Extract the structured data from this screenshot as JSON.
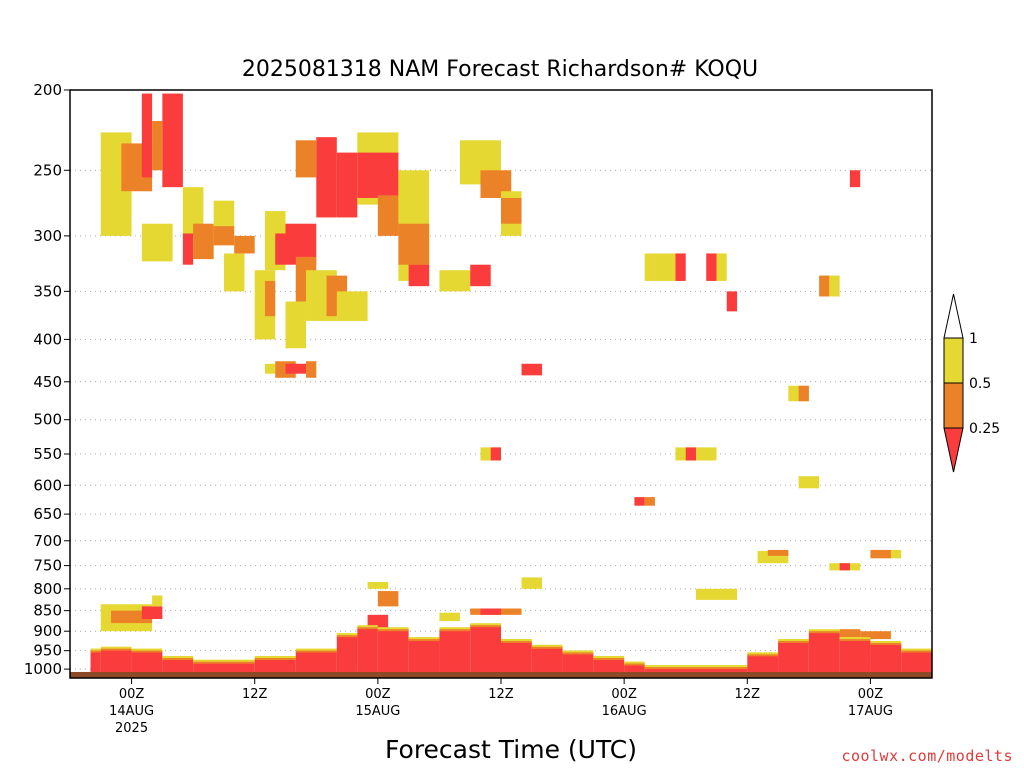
{
  "chart_data": {
    "type": "heatmap",
    "title": "2025081318 NAM Forecast Richardson# KOQU",
    "xlabel": "Forecast Time (UTC)",
    "ylabel": "",
    "y_scale": "log-pressure",
    "y_axis_reversed": true,
    "ylim": [
      1025,
      200
    ],
    "xlim": [
      "2025-08-13T18Z",
      "2025-08-17T06Z"
    ],
    "grid": "dotted horizontal at labeled pressure levels",
    "y_ticks": [
      "200",
      "250",
      "300",
      "350",
      "400",
      "450",
      "500",
      "550",
      "600",
      "650",
      "700",
      "750",
      "800",
      "850",
      "900",
      "950",
      "1000"
    ],
    "x_ticks": [
      {
        "t": "2025-08-14T00Z",
        "lines": [
          "00Z",
          "14AUG",
          "2025"
        ]
      },
      {
        "t": "2025-08-14T12Z",
        "lines": [
          "12Z"
        ]
      },
      {
        "t": "2025-08-15T00Z",
        "lines": [
          "00Z",
          "15AUG"
        ]
      },
      {
        "t": "2025-08-15T12Z",
        "lines": [
          "12Z"
        ]
      },
      {
        "t": "2025-08-16T00Z",
        "lines": [
          "00Z",
          "16AUG"
        ]
      },
      {
        "t": "2025-08-16T12Z",
        "lines": [
          "12Z"
        ]
      },
      {
        "t": "2025-08-17T00Z",
        "lines": [
          "00Z",
          "17AUG"
        ]
      }
    ],
    "legend": {
      "placement": "right",
      "colorbar": [
        {
          "label": "1",
          "color": "#ffffff"
        },
        {
          "label": "0.5",
          "color": "#e6d832"
        },
        {
          "label": "0.25",
          "color": "#ec8228"
        },
        {
          "label": "",
          "color": "#fa3c3c"
        }
      ]
    },
    "classes": {
      "y": {
        "range": "0.5–1",
        "color": "#e6d832"
      },
      "o": {
        "range": "0.25–0.5",
        "color": "#ec8228"
      },
      "r": {
        "range": "<0.25",
        "color": "#fa3c3c"
      }
    },
    "surface": {
      "color": "#8c4a26",
      "pressure_top": 1008
    },
    "regions": [
      {
        "c": "y",
        "t0": "08-13T21Z",
        "t1": "08-14T00Z",
        "p0": 225,
        "p1": 300
      },
      {
        "c": "o",
        "t0": "08-13T23Z",
        "t1": "08-14T02Z",
        "p0": 232,
        "p1": 265
      },
      {
        "c": "r",
        "t0": "08-14T01Z",
        "t1": "08-14T02Z",
        "p0": 202,
        "p1": 255
      },
      {
        "c": "y",
        "t0": "08-14T01Z",
        "t1": "08-14T04Z",
        "p0": 290,
        "p1": 322
      },
      {
        "c": "r",
        "t0": "08-14T03Z",
        "t1": "08-14T05Z",
        "p0": 202,
        "p1": 262
      },
      {
        "c": "o",
        "t0": "08-14T02Z",
        "t1": "08-14T03Z",
        "p0": 218,
        "p1": 250
      },
      {
        "c": "y",
        "t0": "08-14T05Z",
        "t1": "08-14T07Z",
        "p0": 262,
        "p1": 300
      },
      {
        "c": "r",
        "t0": "08-14T05Z",
        "t1": "08-14T06Z",
        "p0": 298,
        "p1": 325
      },
      {
        "c": "o",
        "t0": "08-14T06Z",
        "t1": "08-14T08Z",
        "p0": 290,
        "p1": 320
      },
      {
        "c": "y",
        "t0": "08-14T08Z",
        "t1": "08-14T10Z",
        "p0": 272,
        "p1": 305
      },
      {
        "c": "o",
        "t0": "08-14T08Z",
        "t1": "08-14T10Z",
        "p0": 292,
        "p1": 308
      },
      {
        "c": "y",
        "t0": "08-14T09Z",
        "t1": "08-14T11Z",
        "p0": 315,
        "p1": 350
      },
      {
        "c": "o",
        "t0": "08-14T10Z",
        "t1": "08-14T12Z",
        "p0": 300,
        "p1": 315
      },
      {
        "c": "y",
        "t0": "08-14T12Z",
        "t1": "08-14T14Z",
        "p0": 330,
        "p1": 400
      },
      {
        "c": "y",
        "t0": "08-14T13Z",
        "t1": "08-14T15Z",
        "p0": 280,
        "p1": 330
      },
      {
        "c": "o",
        "t0": "08-14T13Z",
        "t1": "08-14T14Z",
        "p0": 340,
        "p1": 375
      },
      {
        "c": "r",
        "t0": "08-14T14Z",
        "t1": "08-14T15Z",
        "p0": 298,
        "p1": 325
      },
      {
        "c": "r",
        "t0": "08-14T15Z",
        "t1": "08-14T18Z",
        "p0": 290,
        "p1": 325
      },
      {
        "c": "o",
        "t0": "08-14T16Z",
        "t1": "08-14T18Z",
        "p0": 318,
        "p1": 360
      },
      {
        "c": "y",
        "t0": "08-14T15Z",
        "t1": "08-14T17Z",
        "p0": 360,
        "p1": 410
      },
      {
        "c": "y",
        "t0": "08-14T17Z",
        "t1": "08-14T20Z",
        "p0": 330,
        "p1": 380
      },
      {
        "c": "o",
        "t0": "08-14T16Z",
        "t1": "08-14T18Z",
        "p0": 230,
        "p1": 255
      },
      {
        "c": "r",
        "t0": "08-14T18Z",
        "t1": "08-14T20Z",
        "p0": 228,
        "p1": 285
      },
      {
        "c": "r",
        "t0": "08-14T20Z",
        "t1": "08-14T22Z",
        "p0": 238,
        "p1": 285
      },
      {
        "c": "o",
        "t0": "08-14T19Z",
        "t1": "08-14T21Z",
        "p0": 335,
        "p1": 375
      },
      {
        "c": "y",
        "t0": "08-14T20Z",
        "t1": "08-14T23Z",
        "p0": 350,
        "p1": 380
      },
      {
        "c": "y",
        "t0": "08-14T22Z",
        "t1": "08-15T02Z",
        "p0": 225,
        "p1": 275
      },
      {
        "c": "r",
        "t0": "08-14T22Z",
        "t1": "08-15T02Z",
        "p0": 238,
        "p1": 270
      },
      {
        "c": "o",
        "t0": "08-15T00Z",
        "t1": "08-15T03Z",
        "p0": 268,
        "p1": 300
      },
      {
        "c": "y",
        "t0": "08-15T02Z",
        "t1": "08-15T05Z",
        "p0": 250,
        "p1": 340
      },
      {
        "c": "o",
        "t0": "08-15T02Z",
        "t1": "08-15T05Z",
        "p0": 290,
        "p1": 325
      },
      {
        "c": "r",
        "t0": "08-15T03Z",
        "t1": "08-15T05Z",
        "p0": 325,
        "p1": 345
      },
      {
        "c": "y",
        "t0": "08-15T06Z",
        "t1": "08-15T09Z",
        "p0": 330,
        "p1": 350
      },
      {
        "c": "r",
        "t0": "08-15T09Z",
        "t1": "08-15T11Z",
        "p0": 325,
        "p1": 345
      },
      {
        "c": "y",
        "t0": "08-15T08Z",
        "t1": "08-15T12Z",
        "p0": 230,
        "p1": 260
      },
      {
        "c": "o",
        "t0": "08-15T10Z",
        "t1": "08-15T13Z",
        "p0": 250,
        "p1": 270
      },
      {
        "c": "y",
        "t0": "08-15T12Z",
        "t1": "08-15T14Z",
        "p0": 265,
        "p1": 300
      },
      {
        "c": "o",
        "t0": "08-15T12Z",
        "t1": "08-15T14Z",
        "p0": 270,
        "p1": 290
      },
      {
        "c": "y",
        "t0": "08-14T13Z",
        "t1": "08-14T14Z",
        "p0": 428,
        "p1": 440
      },
      {
        "c": "o",
        "t0": "08-14T14Z",
        "t1": "08-14T16Z",
        "p0": 425,
        "p1": 445
      },
      {
        "c": "r",
        "t0": "08-14T15Z",
        "t1": "08-14T17Z",
        "p0": 428,
        "p1": 440
      },
      {
        "c": "o",
        "t0": "08-14T17Z",
        "t1": "08-14T18Z",
        "p0": 425,
        "p1": 445
      },
      {
        "c": "r",
        "t0": "08-15T14Z",
        "t1": "08-15T16Z",
        "p0": 428,
        "p1": 442
      },
      {
        "c": "y",
        "t0": "08-15T10Z",
        "t1": "08-15T12Z",
        "p0": 540,
        "p1": 560
      },
      {
        "c": "r",
        "t0": "08-15T11Z",
        "t1": "08-15T12Z",
        "p0": 540,
        "p1": 560
      },
      {
        "c": "y",
        "t0": "08-16T02Z",
        "t1": "08-16T03Z",
        "p0": 315,
        "p1": 340
      },
      {
        "c": "y",
        "t0": "08-16T03Z",
        "t1": "08-16T05Z",
        "p0": 315,
        "p1": 340
      },
      {
        "c": "r",
        "t0": "08-16T05Z",
        "t1": "08-16T06Z",
        "p0": 315,
        "p1": 340
      },
      {
        "c": "r",
        "t0": "08-16T08Z",
        "t1": "08-16T09Z",
        "p0": 315,
        "p1": 340
      },
      {
        "c": "y",
        "t0": "08-16T09Z",
        "t1": "08-16T10Z",
        "p0": 315,
        "p1": 340
      },
      {
        "c": "r",
        "t0": "08-16T10Z",
        "t1": "08-16T11Z",
        "p0": 350,
        "p1": 370
      },
      {
        "c": "y",
        "t0": "08-16T05Z",
        "t1": "08-16T09Z",
        "p0": 540,
        "p1": 560
      },
      {
        "c": "r",
        "t0": "08-16T06Z",
        "t1": "08-16T07Z",
        "p0": 540,
        "p1": 560
      },
      {
        "c": "r",
        "t0": "08-16T01Z",
        "t1": "08-16T02Z",
        "p0": 620,
        "p1": 635
      },
      {
        "c": "o",
        "t0": "08-16T02Z",
        "t1": "08-16T03Z",
        "p0": 620,
        "p1": 635
      },
      {
        "c": "y",
        "t0": "08-16T17Z",
        "t1": "08-16T19Z",
        "p0": 585,
        "p1": 605
      },
      {
        "c": "y",
        "t0": "08-16T16Z",
        "t1": "08-16T18Z",
        "p0": 455,
        "p1": 475
      },
      {
        "c": "o",
        "t0": "08-16T17Z",
        "t1": "08-16T18Z",
        "p0": 455,
        "p1": 475
      },
      {
        "c": "o",
        "t0": "08-16T19Z",
        "t1": "08-16T20Z",
        "p0": 335,
        "p1": 355
      },
      {
        "c": "y",
        "t0": "08-16T20Z",
        "t1": "08-16T21Z",
        "p0": 335,
        "p1": 355
      },
      {
        "c": "r",
        "t0": "08-16T22Z",
        "t1": "08-16T23Z",
        "p0": 250,
        "p1": 262
      },
      {
        "c": "y",
        "t0": "08-16T13Z",
        "t1": "08-16T16Z",
        "p0": 720,
        "p1": 745
      },
      {
        "c": "o",
        "t0": "08-16T14Z",
        "t1": "08-16T16Z",
        "p0": 718,
        "p1": 730
      },
      {
        "c": "y",
        "t0": "08-16T20Z",
        "t1": "08-16T23Z",
        "p0": 745,
        "p1": 760
      },
      {
        "c": "r",
        "t0": "08-16T21Z",
        "t1": "08-16T22Z",
        "p0": 745,
        "p1": 760
      },
      {
        "c": "o",
        "t0": "08-17T00Z",
        "t1": "08-17T02Z",
        "p0": 718,
        "p1": 735
      },
      {
        "c": "y",
        "t0": "08-17T02Z",
        "t1": "08-17T03Z",
        "p0": 718,
        "p1": 735
      },
      {
        "c": "y",
        "t0": "08-13T21Z",
        "t1": "08-14T02Z",
        "p0": 835,
        "p1": 900
      },
      {
        "c": "o",
        "t0": "08-13T22Z",
        "t1": "08-14T02Z",
        "p0": 850,
        "p1": 880
      },
      {
        "c": "r",
        "t0": "08-14T01Z",
        "t1": "08-14T03Z",
        "p0": 840,
        "p1": 870
      },
      {
        "c": "y",
        "t0": "08-14T02Z",
        "t1": "08-14T03Z",
        "p0": 815,
        "p1": 840
      },
      {
        "c": "y",
        "t0": "08-14T23Z",
        "t1": "08-15T01Z",
        "p0": 785,
        "p1": 800
      },
      {
        "c": "o",
        "t0": "08-15T00Z",
        "t1": "08-15T02Z",
        "p0": 805,
        "p1": 840
      },
      {
        "c": "r",
        "t0": "08-14T23Z",
        "t1": "08-15T01Z",
        "p0": 860,
        "p1": 900
      },
      {
        "c": "y",
        "t0": "08-15T06Z",
        "t1": "08-15T08Z",
        "p0": 855,
        "p1": 875
      },
      {
        "c": "o",
        "t0": "08-15T09Z",
        "t1": "08-15T14Z",
        "p0": 845,
        "p1": 860
      },
      {
        "c": "r",
        "t0": "08-15T10Z",
        "t1": "08-15T12Z",
        "p0": 845,
        "p1": 860
      },
      {
        "c": "y",
        "t0": "08-15T14Z",
        "t1": "08-15T16Z",
        "p0": 775,
        "p1": 800
      },
      {
        "c": "y",
        "t0": "08-16T07Z",
        "t1": "08-16T11Z",
        "p0": 800,
        "p1": 825
      },
      {
        "c": "o",
        "t0": "08-16T21Z",
        "t1": "08-16T23Z",
        "p0": 895,
        "p1": 915
      },
      {
        "c": "o",
        "t0": "08-16T23Z",
        "t1": "08-17T02Z",
        "p0": 900,
        "p1": 920
      }
    ],
    "lowband": [
      {
        "t0": "08-13T20Z",
        "t1": "08-13T21Z",
        "p": 955
      },
      {
        "t0": "08-13T21Z",
        "t1": "08-14T00Z",
        "p": 950
      },
      {
        "t0": "08-14T00Z",
        "t1": "08-14T03Z",
        "p": 955
      },
      {
        "t0": "08-14T03Z",
        "t1": "08-14T06Z",
        "p": 975
      },
      {
        "t0": "08-14T06Z",
        "t1": "08-14T12Z",
        "p": 985
      },
      {
        "t0": "08-14T12Z",
        "t1": "08-14T16Z",
        "p": 975
      },
      {
        "t0": "08-14T16Z",
        "t1": "08-14T20Z",
        "p": 955
      },
      {
        "t0": "08-14T20Z",
        "t1": "08-14T22Z",
        "p": 915
      },
      {
        "t0": "08-14T22Z",
        "t1": "08-15T00Z",
        "p": 895
      },
      {
        "t0": "08-15T00Z",
        "t1": "08-15T03Z",
        "p": 900
      },
      {
        "t0": "08-15T03Z",
        "t1": "08-15T06Z",
        "p": 925
      },
      {
        "t0": "08-15T06Z",
        "t1": "08-15T09Z",
        "p": 900
      },
      {
        "t0": "08-15T09Z",
        "t1": "08-15T12Z",
        "p": 890
      },
      {
        "t0": "08-15T12Z",
        "t1": "08-15T15Z",
        "p": 930
      },
      {
        "t0": "08-15T15Z",
        "t1": "08-15T18Z",
        "p": 945
      },
      {
        "t0": "08-15T18Z",
        "t1": "08-15T21Z",
        "p": 960
      },
      {
        "t0": "08-15T21Z",
        "t1": "08-16T00Z",
        "p": 975
      },
      {
        "t0": "08-16T00Z",
        "t1": "08-16T02Z",
        "p": 990
      },
      {
        "t0": "08-16T02Z",
        "t1": "08-16T12Z",
        "p": 1000
      },
      {
        "t0": "08-16T12Z",
        "t1": "08-16T15Z",
        "p": 965
      },
      {
        "t0": "08-16T15Z",
        "t1": "08-16T18Z",
        "p": 930
      },
      {
        "t0": "08-16T18Z",
        "t1": "08-16T21Z",
        "p": 905
      },
      {
        "t0": "08-16T21Z",
        "t1": "08-17T00Z",
        "p": 925
      },
      {
        "t0": "08-17T00Z",
        "t1": "08-17T03Z",
        "p": 935
      },
      {
        "t0": "08-17T03Z",
        "t1": "08-17T06Z",
        "p": 955
      }
    ]
  },
  "credit": "coolwx.com/modelts"
}
